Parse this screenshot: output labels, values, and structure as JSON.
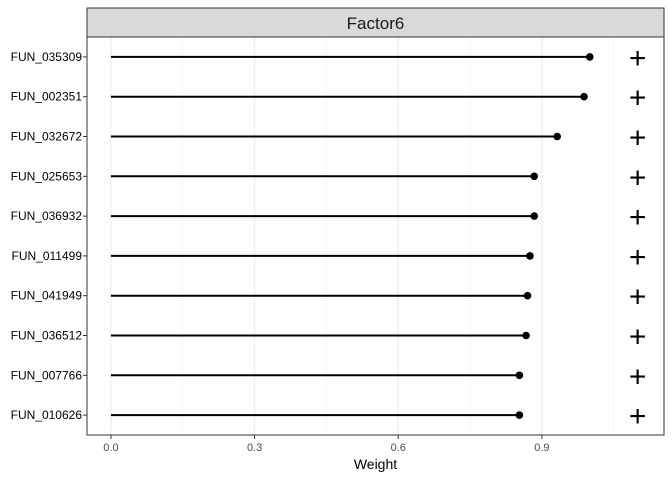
{
  "chart_data": {
    "type": "lollipop",
    "title": "Factor6",
    "xlabel": "Weight",
    "ylabel": "",
    "xlim": [
      -0.05,
      1.155
    ],
    "x_ticks": [
      "0.0",
      "0.3",
      "0.6",
      "0.9"
    ],
    "x_tick_values": [
      0.0,
      0.3,
      0.6,
      0.9
    ],
    "grid": true,
    "categories": [
      "FUN_035309",
      "FUN_002351",
      "FUN_032672",
      "FUN_025653",
      "FUN_036932",
      "FUN_011499",
      "FUN_041949",
      "FUN_036512",
      "FUN_007766",
      "FUN_010626"
    ],
    "values": [
      1.0,
      0.988,
      0.932,
      0.884,
      0.884,
      0.875,
      0.87,
      0.867,
      0.853,
      0.853
    ],
    "signs": [
      "+",
      "+",
      "+",
      "+",
      "+",
      "+",
      "+",
      "+",
      "+",
      "+"
    ],
    "sign_x": 1.1
  }
}
